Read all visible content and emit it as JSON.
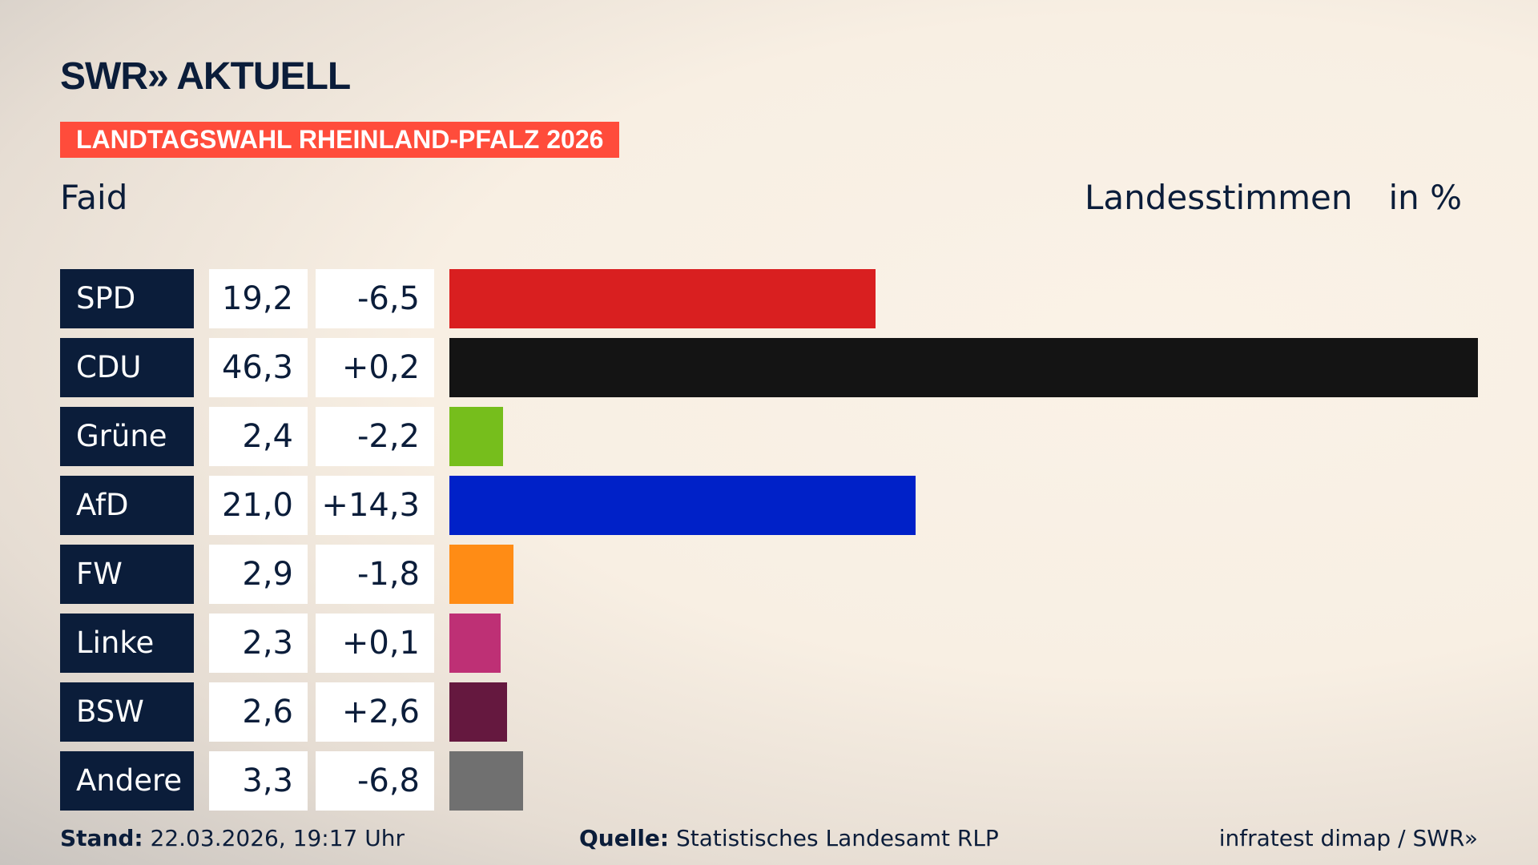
{
  "logo": "SWR» AKTUELL",
  "banner": "LANDTAGSWAHL RHEINLAND-PFALZ 2026",
  "place": "Faid",
  "measure": "Landesstimmen",
  "unit": "in %",
  "chart_data": {
    "type": "bar",
    "orientation": "horizontal",
    "unit": "%",
    "categories": [
      "SPD",
      "CDU",
      "Grüne",
      "AfD",
      "FW",
      "Linke",
      "BSW",
      "Andere"
    ],
    "values": [
      19.2,
      46.3,
      2.4,
      21.0,
      2.9,
      2.3,
      2.6,
      3.3
    ],
    "value_labels": [
      "19,2",
      "46,3",
      "2,4",
      "21,0",
      "2,9",
      "2,3",
      "2,6",
      "3,3"
    ],
    "diff_labels": [
      "-6,5",
      "+0,2",
      "-2,2",
      "+14,3",
      "-1,8",
      "+0,1",
      "+2,6",
      "-6,8"
    ],
    "colors": [
      "#d91f20",
      "#141414",
      "#76be1c",
      "#0021c8",
      "#ff8c15",
      "#be3075",
      "#65183f",
      "#707070"
    ]
  },
  "footer": {
    "stand_label": "Stand:",
    "stand": "22.03.2026, 19:17 Uhr",
    "source_label": "Quelle:",
    "source": "Statistisches Landesamt RLP",
    "credit": "infratest dimap / SWR»"
  }
}
